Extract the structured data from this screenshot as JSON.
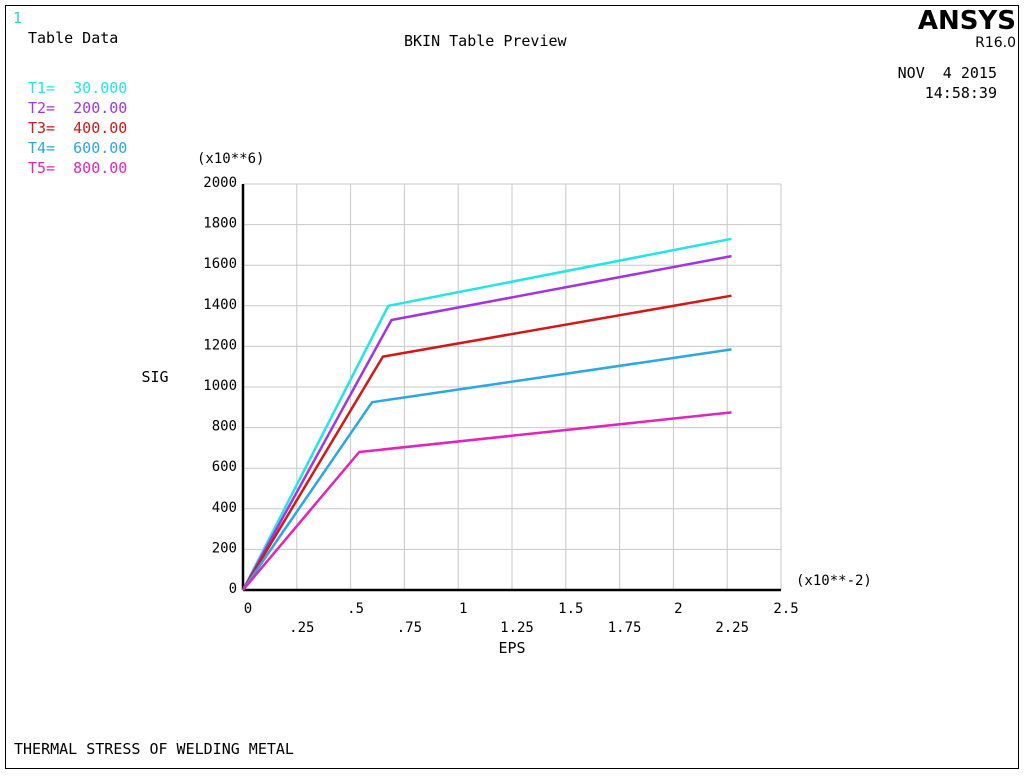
{
  "window_number": "1",
  "panel_label": "Table Data",
  "plot_title": "BKIN Table Preview",
  "brand": "ANSYS",
  "version": "R16.0",
  "date": "NOV  4 2015",
  "time": "14:58:39",
  "footer": "THERMAL STRESS OF WELDING METAL",
  "y_multiplier": "(x10**6)",
  "x_multiplier": "(x10**-2)",
  "legend": [
    {
      "label": "T1=",
      "value": "30.000",
      "color": "#22e5e5"
    },
    {
      "label": "T2=",
      "value": "200.00",
      "color": "#a235e0"
    },
    {
      "label": "T3=",
      "value": "400.00",
      "color": "#d41717"
    },
    {
      "label": "T4=",
      "value": "600.00",
      "color": "#2aa7e4"
    },
    {
      "label": "T5=",
      "value": "800.00",
      "color": "#e225b8"
    }
  ],
  "chart_data": {
    "type": "line",
    "title": "BKIN Table Preview",
    "xlabel": "EPS",
    "ylabel": "SIG",
    "xlim": [
      0,
      2.5
    ],
    "ylim": [
      0,
      2000
    ],
    "grid": true,
    "x_ticks_major": [
      "0",
      ".5",
      "1",
      "1.5",
      "2",
      "2.5"
    ],
    "x_ticks_minor": [
      ".25",
      ".75",
      "1.25",
      "1.75",
      "2.25"
    ],
    "y_ticks": [
      "0",
      "200",
      "400",
      "600",
      "800",
      "1000",
      "1200",
      "1400",
      "1600",
      "1800",
      "2000"
    ],
    "series": [
      {
        "name": "T1=",
        "color": "#22e5e5",
        "points": [
          [
            0,
            0
          ],
          [
            0.675,
            1400
          ],
          [
            2.27,
            1730
          ]
        ]
      },
      {
        "name": "T2=",
        "color": "#a235e0",
        "points": [
          [
            0,
            0
          ],
          [
            0.69,
            1330
          ],
          [
            2.27,
            1645
          ]
        ]
      },
      {
        "name": "T3=",
        "color": "#d41717",
        "points": [
          [
            0,
            0
          ],
          [
            0.65,
            1150
          ],
          [
            2.27,
            1450
          ]
        ]
      },
      {
        "name": "T4=",
        "color": "#2aa7e4",
        "points": [
          [
            0,
            0
          ],
          [
            0.6,
            925
          ],
          [
            2.27,
            1185
          ]
        ]
      },
      {
        "name": "T5=",
        "color": "#e225b8",
        "points": [
          [
            0,
            0
          ],
          [
            0.54,
            680
          ],
          [
            2.27,
            875
          ]
        ]
      }
    ]
  }
}
